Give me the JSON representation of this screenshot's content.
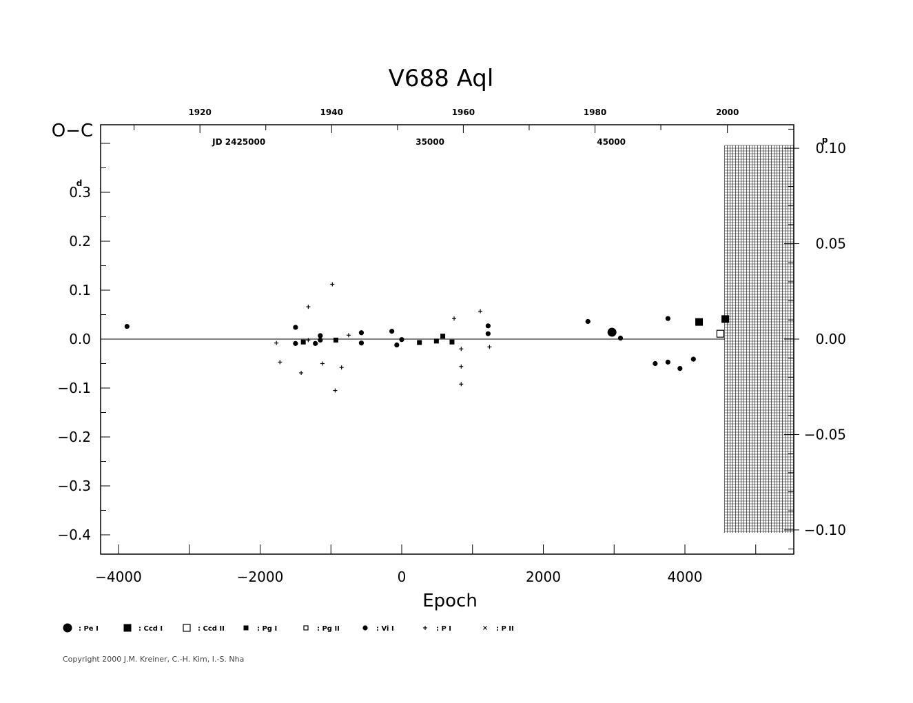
{
  "chart_data": {
    "type": "scatter",
    "title": "V688  Aql",
    "ylabel": "O−C",
    "xlabel": "Epoch",
    "xlim": [
      -4500,
      5500
    ],
    "ylim": [
      -0.44,
      0.44
    ],
    "x_ticks": [
      {
        "value": -4000,
        "label": "−4000"
      },
      {
        "value": -2000,
        "label": "−2000"
      },
      {
        "value": 0,
        "label": "0"
      },
      {
        "value": 2000,
        "label": "2000"
      },
      {
        "value": 4000,
        "label": "4000"
      }
    ],
    "y_ticks": [
      {
        "value": 0.3,
        "label": "0.3"
      },
      {
        "value": 0.2,
        "label": "0.2"
      },
      {
        "value": 0.1,
        "label": "0.1"
      },
      {
        "value": 0.0,
        "label": "0.0"
      },
      {
        "value": -0.1,
        "label": "−0.1"
      },
      {
        "value": -0.2,
        "label": "−0.2"
      },
      {
        "value": -0.3,
        "label": "−0.3"
      },
      {
        "value": -0.4,
        "label": "−0.4"
      }
    ],
    "y_unit_superscript": "d",
    "right_ticks": [
      {
        "value": 0.1,
        "label": "0.10"
      },
      {
        "value": 0.05,
        "label": "0.05"
      },
      {
        "value": 0.0,
        "label": "0.00"
      },
      {
        "value": -0.05,
        "label": "−0.05"
      },
      {
        "value": -0.1,
        "label": "−0.10"
      }
    ],
    "right_unit_superscript": "p",
    "right_scale_days_per_unit": 3.9,
    "top_year_ticks": [
      {
        "epoch": -2850,
        "label": "1920"
      },
      {
        "epoch": -990,
        "label": "1940"
      },
      {
        "epoch": 870,
        "label": "1960"
      },
      {
        "epoch": 2730,
        "label": "1980"
      },
      {
        "epoch": 4600,
        "label": "2000"
      }
    ],
    "top_minor_epochs": [
      -3780,
      -1920,
      -60,
      1800,
      3660
    ],
    "jd_labels": [
      {
        "epoch": -2300,
        "label": "JD  2425000"
      },
      {
        "epoch": 400,
        "label": "35000"
      },
      {
        "epoch": 2960,
        "label": "45000"
      }
    ],
    "hatched_region_start_epoch": 4600,
    "series": [
      {
        "name": "Pe I",
        "symbol": "big-dot",
        "points": [
          [
            2970,
            0.014
          ]
        ]
      },
      {
        "name": "Ccd I",
        "symbol": "big-square",
        "points": [
          [
            4200,
            0.035
          ],
          [
            4570,
            0.041
          ]
        ]
      },
      {
        "name": "Ccd II",
        "symbol": "open-square",
        "points": [
          [
            4500,
            0.011
          ]
        ]
      },
      {
        "name": "Pg I",
        "symbol": "square",
        "points": [
          [
            -1390,
            -0.006
          ],
          [
            -930,
            -0.002
          ],
          [
            250,
            -0.007
          ],
          [
            490,
            -0.004
          ],
          [
            580,
            0.006
          ],
          [
            710,
            -0.006
          ]
        ]
      },
      {
        "name": "Pg II",
        "symbol": "open-small-square",
        "points": []
      },
      {
        "name": "Vi I",
        "symbol": "dot",
        "points": [
          [
            -3880,
            0.026
          ],
          [
            -1500,
            0.024
          ],
          [
            -1500,
            -0.009
          ],
          [
            -1220,
            -0.009
          ],
          [
            -1150,
            0.007
          ],
          [
            -1150,
            -0.002
          ],
          [
            -570,
            0.013
          ],
          [
            -570,
            -0.008
          ],
          [
            -140,
            0.016
          ],
          [
            -70,
            -0.012
          ],
          [
            0,
            -0.001
          ],
          [
            1220,
            0.027
          ],
          [
            1220,
            0.011
          ],
          [
            2630,
            0.036
          ],
          [
            3090,
            0.002
          ],
          [
            3580,
            -0.05
          ],
          [
            3760,
            0.042
          ],
          [
            3760,
            -0.047
          ],
          [
            3930,
            -0.06
          ],
          [
            4120,
            -0.041
          ]
        ]
      },
      {
        "name": "P I",
        "symbol": "plus",
        "points": [
          [
            -1770,
            -0.008
          ],
          [
            -1720,
            -0.047
          ],
          [
            -1420,
            -0.069
          ],
          [
            -1320,
            0.066
          ],
          [
            -1320,
            -0.002
          ],
          [
            -1120,
            -0.05
          ],
          [
            -980,
            0.112
          ],
          [
            -940,
            -0.105
          ],
          [
            -850,
            -0.058
          ],
          [
            -750,
            0.008
          ],
          [
            740,
            0.042
          ],
          [
            840,
            -0.02
          ],
          [
            840,
            -0.056
          ],
          [
            840,
            -0.092
          ],
          [
            1110,
            0.057
          ],
          [
            1240,
            -0.016
          ]
        ]
      },
      {
        "name": "P II",
        "symbol": "cross",
        "points": []
      }
    ]
  },
  "legend": [
    {
      "symbol": "big-dot",
      "label": ": Pe  I"
    },
    {
      "symbol": "big-square",
      "label": ": Ccd  I"
    },
    {
      "symbol": "open-square",
      "label": ": Ccd  II"
    },
    {
      "symbol": "square",
      "label": ": Pg  I"
    },
    {
      "symbol": "open-small-square",
      "label": ": Pg  II"
    },
    {
      "symbol": "dot",
      "label": ": Vi  I"
    },
    {
      "symbol": "plus",
      "label": ": P  I"
    },
    {
      "symbol": "cross",
      "label": ": P  II"
    }
  ],
  "copyright": "Copyright 2000 J.M. Kreiner, C.-H. Kim, I.-S. Nha"
}
